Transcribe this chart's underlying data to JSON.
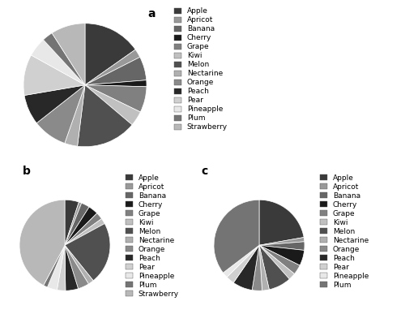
{
  "fruits_a": [
    "Apple",
    "Apricot",
    "Banana",
    "Cherry",
    "Grape",
    "Kiwi",
    "Melon",
    "Nectarine",
    "Orange",
    "Peach",
    "Pear",
    "Pineapple",
    "Plum",
    "Strawberry"
  ],
  "fruits_b": [
    "Apple",
    "Apricot",
    "Banana",
    "Cherry",
    "Grape",
    "Kiwi",
    "Melon",
    "Nectarine",
    "Orange",
    "Peach",
    "Pear",
    "Pineapple",
    "Plum",
    "Strawberry"
  ],
  "fruits_c": [
    "Apple",
    "Apricot",
    "Banana",
    "Cherry",
    "Grape",
    "Kiwi",
    "Melon",
    "Nectarine",
    "Orange",
    "Peach",
    "Pear",
    "Pineapple",
    "Plum"
  ],
  "values_a": [
    13.5,
    2.0,
    5.5,
    1.5,
    6.0,
    3.5,
    14.0,
    3.0,
    8.0,
    7.0,
    9.5,
    4.5,
    2.5,
    8.0
  ],
  "values_b": [
    5.0,
    1.0,
    3.0,
    3.5,
    2.5,
    2.0,
    22.0,
    2.0,
    4.0,
    4.5,
    3.0,
    3.5,
    1.5,
    42.0
  ],
  "values_c": [
    22.0,
    1.5,
    3.0,
    5.5,
    3.5,
    2.5,
    8.0,
    2.5,
    3.5,
    7.0,
    3.0,
    2.0,
    35.0
  ],
  "colors": [
    "#3a3a3a",
    "#999999",
    "#666666",
    "#1a1a1a",
    "#808080",
    "#c0c0c0",
    "#505050",
    "#b0b0b0",
    "#8a8a8a",
    "#282828",
    "#d0d0d0",
    "#e8e8e8",
    "#747474",
    "#b8b8b8"
  ],
  "legend_fontsize": 6.5,
  "startangle": 90
}
